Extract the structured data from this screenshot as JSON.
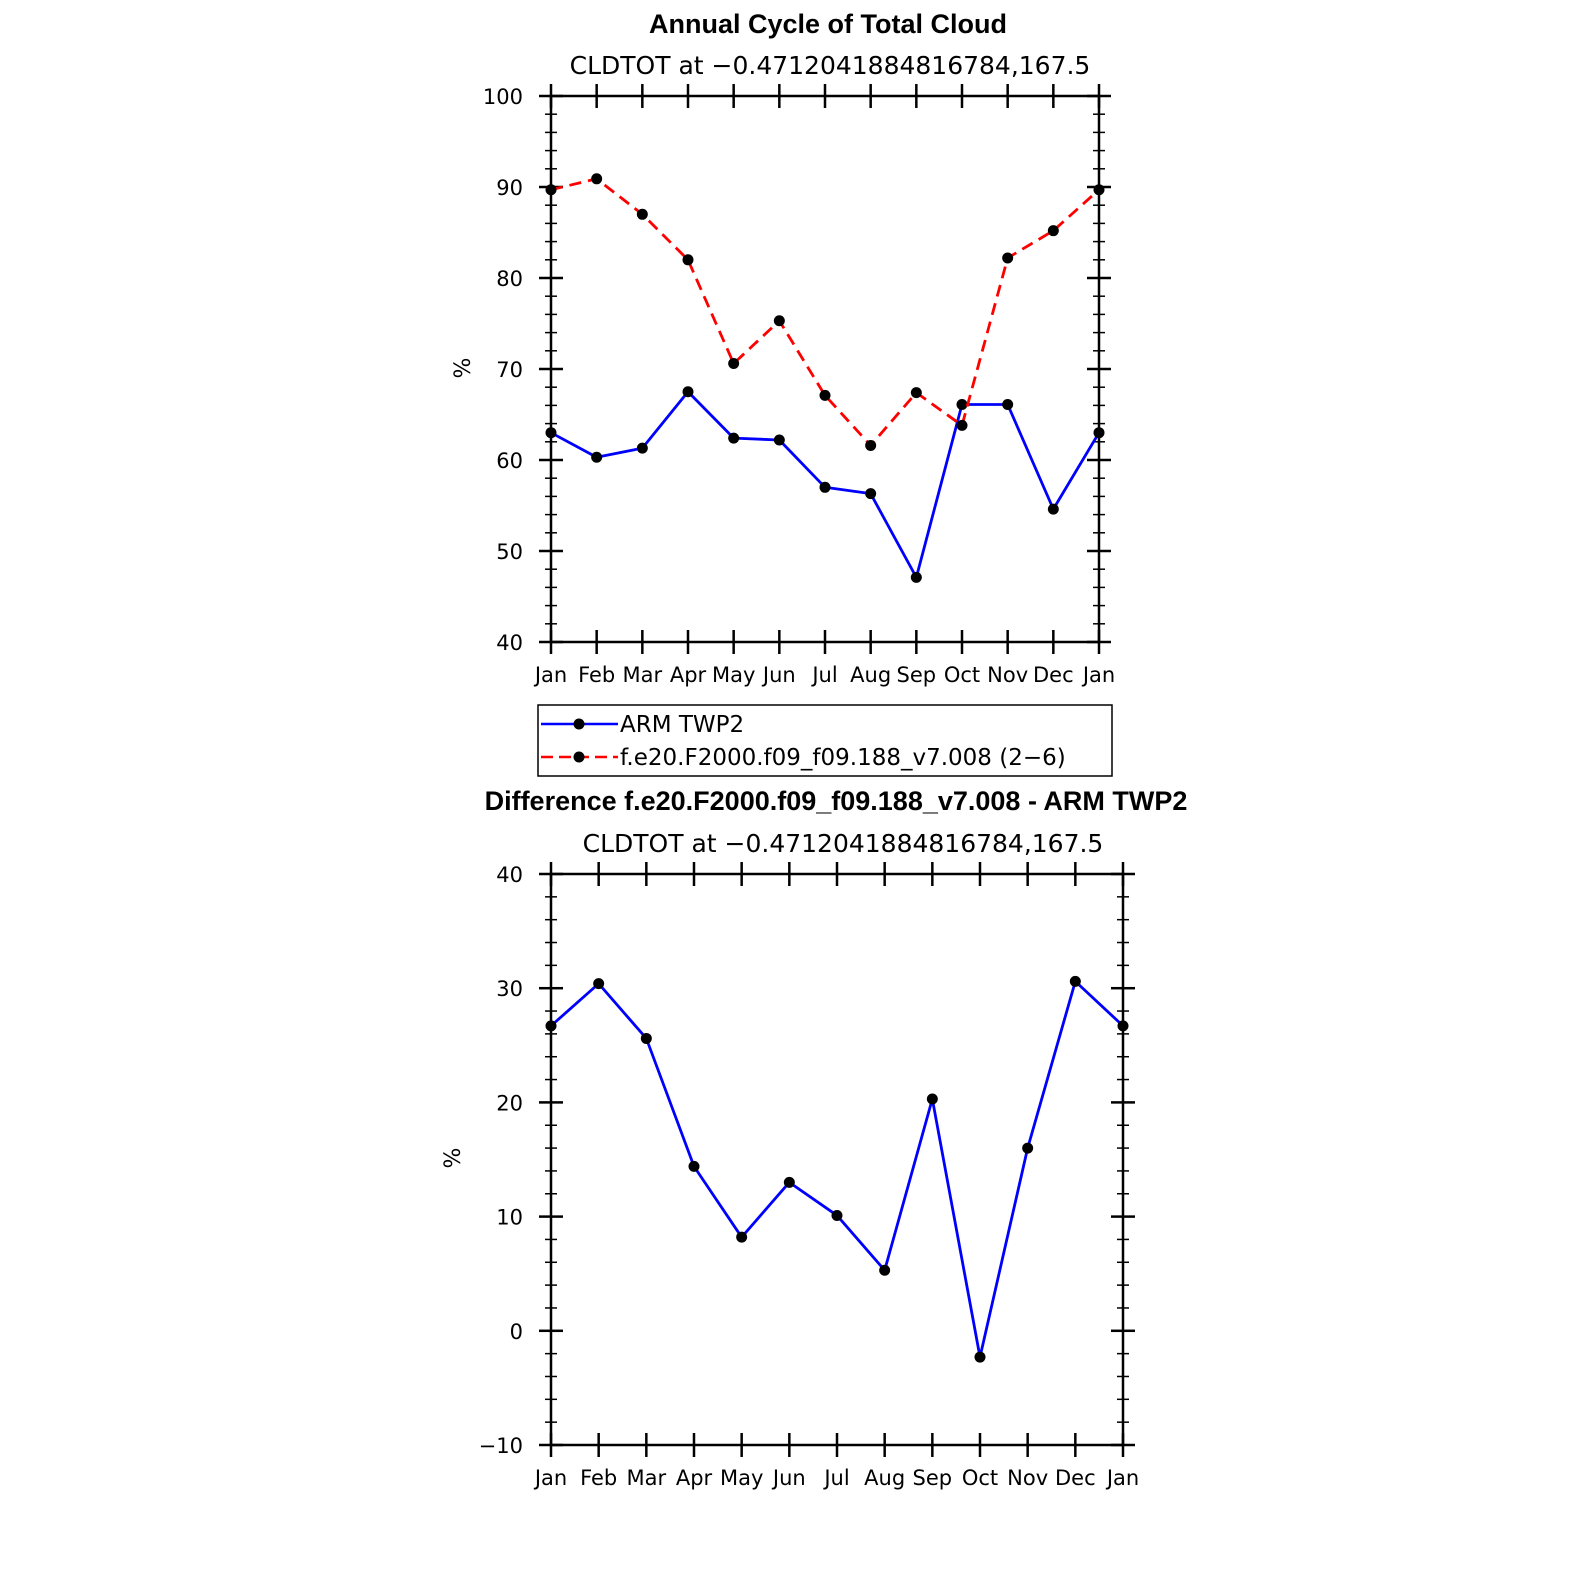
{
  "chart_data": [
    {
      "type": "line",
      "title": "Annual Cycle of Total Cloud",
      "subtitle": "CLDTOT at −0.4712041884816784,167.5",
      "ylabel": "%",
      "xlabel": "",
      "ylim": [
        40,
        100
      ],
      "yticks": [
        "100",
        "90",
        "80",
        "70",
        "60",
        "50",
        "40"
      ],
      "ytick_values": [
        100,
        90,
        80,
        70,
        60,
        50,
        40
      ],
      "categories": [
        "Jan",
        "Feb",
        "Mar",
        "Apr",
        "May",
        "Jun",
        "Jul",
        "Aug",
        "Sep",
        "Oct",
        "Nov",
        "Dec",
        "Jan"
      ],
      "grid": false,
      "legend_position": "bottom",
      "series": [
        {
          "name": "ARM TWP2",
          "color": "#0000ff",
          "dash": "solid",
          "values": [
            63.0,
            60.3,
            61.3,
            67.5,
            62.4,
            62.2,
            57.0,
            56.3,
            47.1,
            66.1,
            66.1,
            54.6,
            63.0
          ]
        },
        {
          "name": "f.e20.F2000.f09_f09.188_v7.008 (2−6)",
          "color": "#ff0000",
          "dash": "dashed",
          "values": [
            89.7,
            90.9,
            87.0,
            82.0,
            70.6,
            75.3,
            67.1,
            61.6,
            67.4,
            63.8,
            82.2,
            85.2,
            89.7
          ]
        }
      ]
    },
    {
      "type": "line",
      "title": "Difference f.e20.F2000.f09_f09.188_v7.008 - ARM TWP2",
      "subtitle": "CLDTOT at −0.4712041884816784,167.5",
      "ylabel": "%",
      "xlabel": "",
      "ylim": [
        -10,
        40
      ],
      "yticks": [
        "40",
        "30",
        "20",
        "10",
        "0",
        "−10"
      ],
      "ytick_values": [
        40,
        30,
        20,
        10,
        0,
        -10
      ],
      "categories": [
        "Jan",
        "Feb",
        "Mar",
        "Apr",
        "May",
        "Jun",
        "Jul",
        "Aug",
        "Sep",
        "Oct",
        "Nov",
        "Dec",
        "Jan"
      ],
      "grid": false,
      "series": [
        {
          "color": "#0000ff",
          "dash": "solid",
          "values": [
            26.7,
            30.4,
            25.6,
            14.4,
            8.2,
            13.0,
            10.1,
            5.3,
            20.3,
            -2.3,
            16.0,
            30.6,
            26.7
          ]
        }
      ]
    }
  ]
}
